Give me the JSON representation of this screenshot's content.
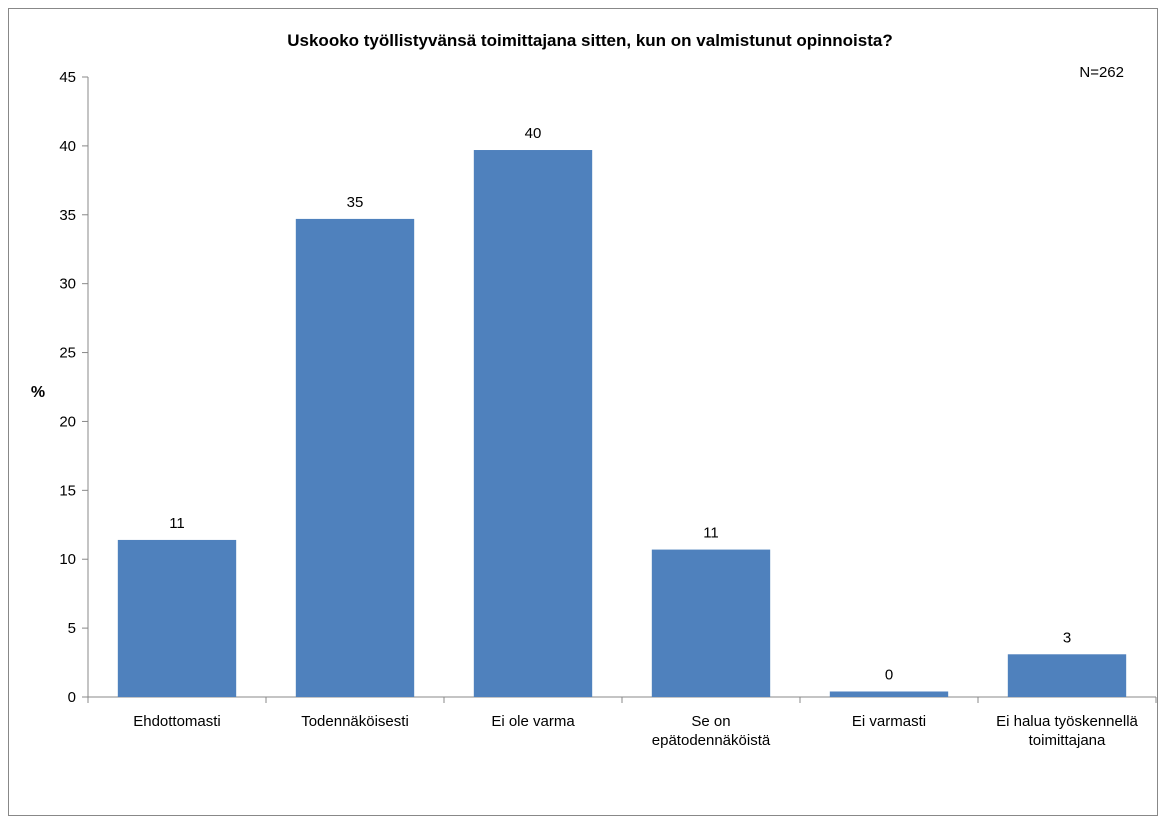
{
  "chart_data": {
    "type": "bar",
    "title": "Uskooko työllistyvänsä toimittajana sitten, kun on valmistunut opinnoista?",
    "note": "N=262",
    "ylabel": "%",
    "xlabel": "",
    "ylim": [
      0,
      45
    ],
    "yticks": [
      0,
      5,
      10,
      15,
      20,
      25,
      30,
      35,
      40,
      45
    ],
    "grid": false,
    "categories": [
      [
        "Ehdottomasti"
      ],
      [
        "Todennäköisesti"
      ],
      [
        "Ei ole varma"
      ],
      [
        "Se on",
        "epätodennäköistä"
      ],
      [
        "Ei varmasti"
      ],
      [
        "Ei halua työskennellä",
        "toimittajana"
      ]
    ],
    "values": [
      11.4,
      34.7,
      39.7,
      10.7,
      0.4,
      3.1
    ],
    "data_labels": [
      "11",
      "35",
      "40",
      "11",
      "0",
      "3"
    ],
    "bar_color": "#4f81bd"
  }
}
